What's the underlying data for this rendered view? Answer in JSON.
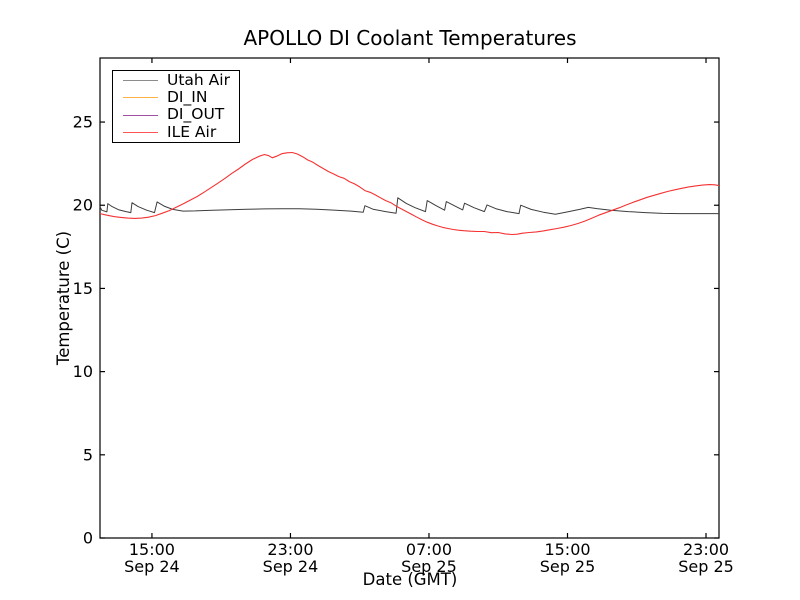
{
  "chart_data": {
    "type": "line",
    "title": "APOLLO DI Coolant Temperatures",
    "xlabel": "Date (GMT)",
    "ylabel": "Temperature (C)",
    "x_unit": "hours since Sep 24 00:00 GMT",
    "xlim": [
      12,
      47.75
    ],
    "ylim": [
      0,
      28.85
    ],
    "grid": false,
    "legend_position": "upper left",
    "x_ticks": [
      {
        "t": 15,
        "line1": "15:00",
        "line2": "Sep 24"
      },
      {
        "t": 23,
        "line1": "23:00",
        "line2": "Sep 24"
      },
      {
        "t": 31,
        "line1": "07:00",
        "line2": "Sep 25"
      },
      {
        "t": 39,
        "line1": "15:00",
        "line2": "Sep 25"
      },
      {
        "t": 47,
        "line1": "23:00",
        "line2": "Sep 25"
      }
    ],
    "y_ticks": [
      0,
      5,
      10,
      15,
      20,
      25
    ],
    "series": [
      {
        "name": "Utah Air",
        "color": "#3d3d3d",
        "width": 1,
        "points": [
          [
            12,
            19.92
          ],
          [
            12.1,
            19.7
          ],
          [
            12.4,
            19.6
          ],
          [
            12.45,
            20.1
          ],
          [
            12.7,
            19.92
          ],
          [
            13.1,
            19.72
          ],
          [
            13.5,
            19.62
          ],
          [
            13.78,
            19.56
          ],
          [
            13.85,
            20.15
          ],
          [
            14.2,
            19.92
          ],
          [
            14.7,
            19.7
          ],
          [
            15.15,
            19.56
          ],
          [
            15.3,
            20.2
          ],
          [
            15.7,
            19.95
          ],
          [
            16.2,
            19.75
          ],
          [
            16.8,
            19.65
          ],
          [
            17.5,
            19.66
          ],
          [
            18.5,
            19.7
          ],
          [
            19.5,
            19.73
          ],
          [
            20.5,
            19.76
          ],
          [
            21.5,
            19.78
          ],
          [
            22.5,
            19.79
          ],
          [
            23.5,
            19.79
          ],
          [
            24.5,
            19.76
          ],
          [
            25.5,
            19.71
          ],
          [
            26.5,
            19.65
          ],
          [
            27.2,
            19.58
          ],
          [
            27.3,
            19.97
          ],
          [
            27.8,
            19.75
          ],
          [
            28.5,
            19.62
          ],
          [
            29.1,
            19.52
          ],
          [
            29.2,
            20.45
          ],
          [
            29.7,
            20.1
          ],
          [
            30.2,
            19.85
          ],
          [
            30.8,
            19.62
          ],
          [
            30.9,
            20.28
          ],
          [
            31.4,
            19.98
          ],
          [
            31.9,
            19.7
          ],
          [
            32,
            20.22
          ],
          [
            32.5,
            19.95
          ],
          [
            32.95,
            19.72
          ],
          [
            33.05,
            20.12
          ],
          [
            33.6,
            19.85
          ],
          [
            34.2,
            19.62
          ],
          [
            34.35,
            20.02
          ],
          [
            34.9,
            19.78
          ],
          [
            35.5,
            19.62
          ],
          [
            36.2,
            19.5
          ],
          [
            36.3,
            20
          ],
          [
            36.9,
            19.75
          ],
          [
            37.6,
            19.58
          ],
          [
            38.3,
            19.46
          ],
          [
            39,
            19.6
          ],
          [
            39.7,
            19.75
          ],
          [
            40.2,
            19.87
          ],
          [
            40.7,
            19.8
          ],
          [
            41.5,
            19.7
          ],
          [
            42.5,
            19.62
          ],
          [
            43.5,
            19.56
          ],
          [
            44.5,
            19.51
          ],
          [
            45.5,
            19.5
          ],
          [
            46.5,
            19.5
          ],
          [
            47.75,
            19.5
          ]
        ]
      },
      {
        "name": "DI_IN",
        "color": "#ffa628",
        "width": 1,
        "points": []
      },
      {
        "name": "DI_OUT",
        "color": "#a050a0",
        "width": 1,
        "points": []
      },
      {
        "name": "ILE Air",
        "color": "#f53232",
        "width": 1.1,
        "points": [
          [
            12,
            19.5
          ],
          [
            12.4,
            19.4
          ],
          [
            12.8,
            19.32
          ],
          [
            13.2,
            19.27
          ],
          [
            13.6,
            19.23
          ],
          [
            14,
            19.21
          ],
          [
            14.4,
            19.23
          ],
          [
            14.8,
            19.28
          ],
          [
            15.2,
            19.38
          ],
          [
            15.6,
            19.52
          ],
          [
            16,
            19.68
          ],
          [
            16.4,
            19.88
          ],
          [
            16.8,
            20.08
          ],
          [
            17.2,
            20.3
          ],
          [
            17.6,
            20.52
          ],
          [
            18,
            20.78
          ],
          [
            18.4,
            21.05
          ],
          [
            18.8,
            21.32
          ],
          [
            19.2,
            21.6
          ],
          [
            19.6,
            21.9
          ],
          [
            20,
            22.18
          ],
          [
            20.4,
            22.48
          ],
          [
            20.8,
            22.75
          ],
          [
            21.2,
            22.95
          ],
          [
            21.5,
            23.05
          ],
          [
            21.75,
            22.98
          ],
          [
            21.95,
            22.85
          ],
          [
            22.2,
            22.95
          ],
          [
            22.5,
            23.1
          ],
          [
            22.8,
            23.15
          ],
          [
            23.1,
            23.17
          ],
          [
            23.4,
            23.08
          ],
          [
            23.7,
            22.92
          ],
          [
            24,
            22.72
          ],
          [
            24.3,
            22.58
          ],
          [
            24.6,
            22.38
          ],
          [
            24.9,
            22.2
          ],
          [
            25.2,
            22.02
          ],
          [
            25.5,
            21.88
          ],
          [
            25.8,
            21.72
          ],
          [
            26.1,
            21.62
          ],
          [
            26.4,
            21.42
          ],
          [
            26.7,
            21.28
          ],
          [
            27,
            21.1
          ],
          [
            27.3,
            20.88
          ],
          [
            27.6,
            20.78
          ],
          [
            27.9,
            20.62
          ],
          [
            28.2,
            20.45
          ],
          [
            28.5,
            20.28
          ],
          [
            28.8,
            20.15
          ],
          [
            29.1,
            19.95
          ],
          [
            29.4,
            19.78
          ],
          [
            29.7,
            19.62
          ],
          [
            30,
            19.45
          ],
          [
            30.3,
            19.28
          ],
          [
            30.6,
            19.12
          ],
          [
            30.9,
            18.98
          ],
          [
            31.2,
            18.86
          ],
          [
            31.5,
            18.76
          ],
          [
            31.8,
            18.67
          ],
          [
            32.1,
            18.6
          ],
          [
            32.4,
            18.54
          ],
          [
            32.7,
            18.5
          ],
          [
            33,
            18.47
          ],
          [
            33.4,
            18.44
          ],
          [
            33.8,
            18.42
          ],
          [
            34.2,
            18.42
          ],
          [
            34.6,
            18.35
          ],
          [
            35,
            18.36
          ],
          [
            35.4,
            18.28
          ],
          [
            35.8,
            18.24
          ],
          [
            36.1,
            18.26
          ],
          [
            36.4,
            18.32
          ],
          [
            36.8,
            18.36
          ],
          [
            37.2,
            18.4
          ],
          [
            37.6,
            18.46
          ],
          [
            38,
            18.53
          ],
          [
            38.4,
            18.6
          ],
          [
            38.8,
            18.68
          ],
          [
            39.2,
            18.78
          ],
          [
            39.6,
            18.9
          ],
          [
            40,
            19.05
          ],
          [
            40.4,
            19.22
          ],
          [
            40.8,
            19.4
          ],
          [
            41.2,
            19.55
          ],
          [
            41.6,
            19.7
          ],
          [
            42,
            19.85
          ],
          [
            42.4,
            20.02
          ],
          [
            42.8,
            20.18
          ],
          [
            43.2,
            20.33
          ],
          [
            43.6,
            20.48
          ],
          [
            44,
            20.6
          ],
          [
            44.4,
            20.72
          ],
          [
            44.8,
            20.83
          ],
          [
            45.2,
            20.93
          ],
          [
            45.6,
            21.02
          ],
          [
            46,
            21.1
          ],
          [
            46.4,
            21.16
          ],
          [
            46.8,
            21.21
          ],
          [
            47.2,
            21.24
          ],
          [
            47.5,
            21.23
          ],
          [
            47.75,
            21.18
          ]
        ]
      }
    ]
  },
  "legend": {
    "items": [
      {
        "label": "Utah Air",
        "color": "#8c8c8c"
      },
      {
        "label": "DI_IN",
        "color": "#ffb347"
      },
      {
        "label": "DI_OUT",
        "color": "#a050a0"
      },
      {
        "label": "ILE Air",
        "color": "#ff5555"
      }
    ]
  }
}
